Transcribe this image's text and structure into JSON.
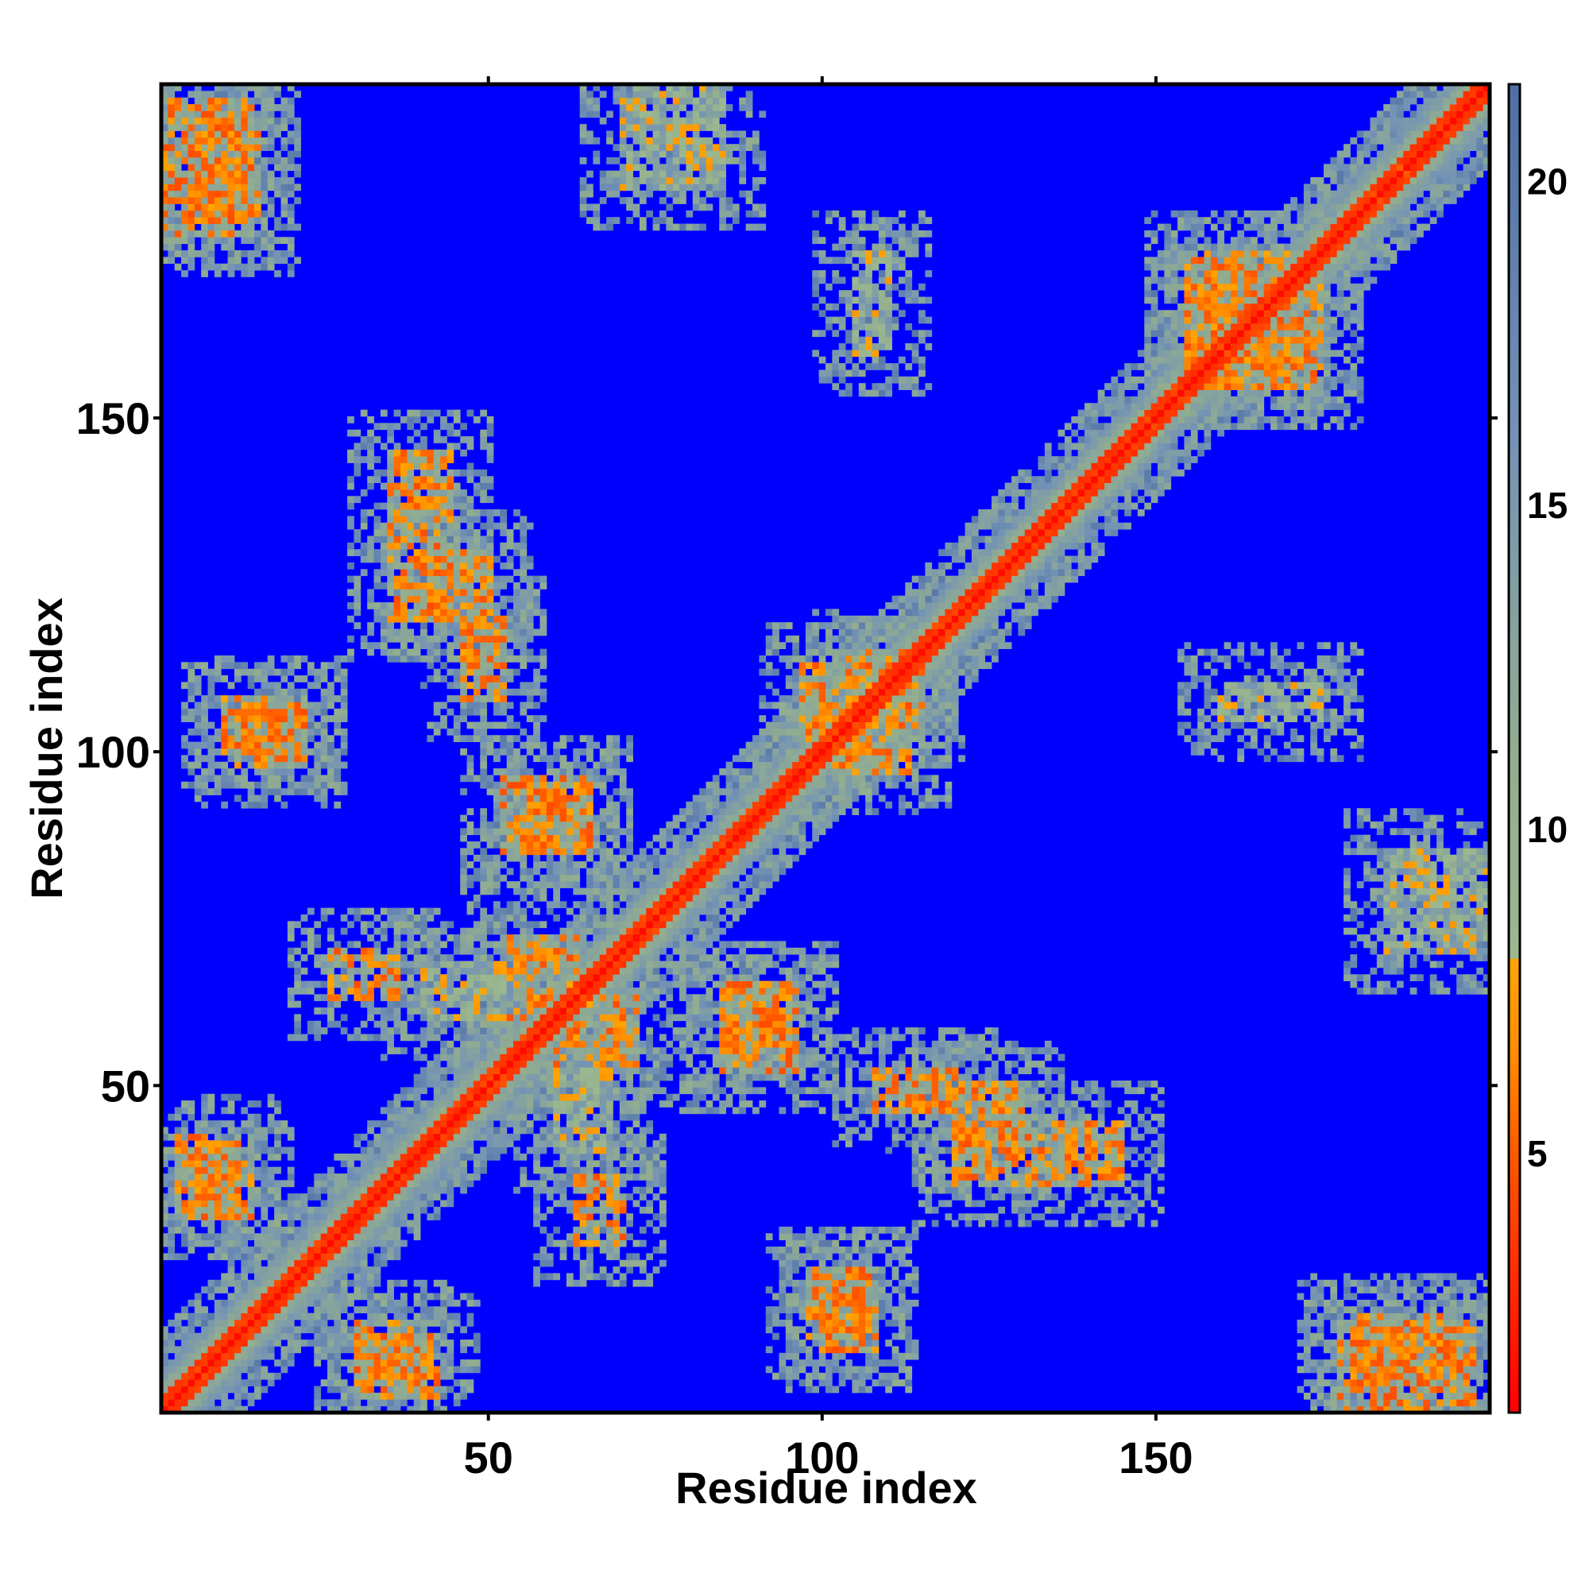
{
  "chart_data": {
    "type": "heatmap",
    "title": "",
    "subtitle": "",
    "xlabel": "Residue index",
    "ylabel": "Residue index",
    "n_residues": 200,
    "xlim": [
      1,
      200
    ],
    "ylim": [
      1,
      200
    ],
    "x_ticks": [
      50,
      100,
      150
    ],
    "y_ticks": [
      50,
      100,
      150
    ],
    "colorbar": {
      "range": [
        1,
        21.5
      ],
      "ticks": [
        5,
        10,
        15,
        20
      ],
      "stops": [
        {
          "value": 1.0,
          "color": "#ff0000"
        },
        {
          "value": 4.5,
          "color": "#ff4a00"
        },
        {
          "value": 6.5,
          "color": "#ff8c00"
        },
        {
          "value": 8.0,
          "color": "#ffa500"
        },
        {
          "value": 8.01,
          "color": "#9cb890"
        },
        {
          "value": 11.0,
          "color": "#93ae8e"
        },
        {
          "value": 16.0,
          "color": "#7493b5"
        },
        {
          "value": 21.5,
          "color": "#4f6fa5"
        }
      ],
      "out_of_range_color": "#0000ff"
    },
    "cutoff_distance": 20,
    "features": {
      "diagonal": [
        [
          1,
          200
        ]
      ],
      "contact_bands": [
        {
          "x": [
            1,
            14
          ],
          "y": [
            178,
            198
          ],
          "level": "strong"
        },
        {
          "x": [
            3,
            12
          ],
          "y": [
            30,
            42
          ],
          "level": "strong"
        },
        {
          "x": [
            12,
            22
          ],
          "y": [
            98,
            106
          ],
          "level": "strong"
        },
        {
          "x": [
            30,
            38
          ],
          "y": [
            5,
            14
          ],
          "level": "strong"
        },
        {
          "x": [
            35,
            44
          ],
          "y": [
            120,
            145
          ],
          "level": "strong"
        },
        {
          "x": [
            40,
            52
          ],
          "y": [
            60,
            68
          ],
          "level": "medium"
        },
        {
          "x": [
            55,
            65
          ],
          "y": [
            85,
            95
          ],
          "level": "strong"
        },
        {
          "x": [
            60,
            72
          ],
          "y": [
            53,
            63
          ],
          "level": "strong"
        },
        {
          "x": [
            63,
            70
          ],
          "y": [
            26,
            36
          ],
          "level": "strong"
        },
        {
          "x": [
            85,
            96
          ],
          "y": [
            52,
            65
          ],
          "level": "strong"
        },
        {
          "x": [
            100,
            108
          ],
          "y": [
            10,
            22
          ],
          "level": "strong"
        },
        {
          "x": [
            102,
            113
          ],
          "y": [
            97,
            105
          ],
          "level": "strong"
        },
        {
          "x": [
            104,
            114
          ],
          "y": [
            107,
            115
          ],
          "level": "strong"
        },
        {
          "x": [
            108,
            120
          ],
          "y": [
            46,
            52
          ],
          "level": "strong"
        },
        {
          "x": [
            120,
            130
          ],
          "y": [
            40,
            50
          ],
          "level": "strong"
        },
        {
          "x": [
            155,
            170
          ],
          "y": [
            155,
            175
          ],
          "level": "strong"
        },
        {
          "x": [
            180,
            195
          ],
          "y": [
            5,
            15
          ],
          "level": "strong"
        },
        {
          "x": [
            160,
            175
          ],
          "y": [
            105,
            110
          ],
          "level": "medium"
        },
        {
          "x": [
            185,
            200
          ],
          "y": [
            70,
            85
          ],
          "level": "medium"
        }
      ]
    }
  }
}
